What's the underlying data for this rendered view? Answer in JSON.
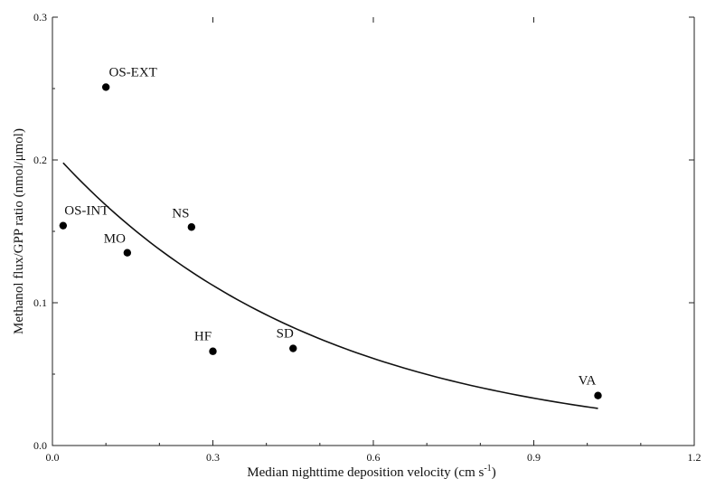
{
  "chart_data": {
    "type": "scatter",
    "xlabel": "Median nighttime deposition velocity (cm s",
    "xlabel_sup": "-1",
    "xlabel_suffix": ")",
    "ylabel": "Methanol flux/GPP ratio (nmol/μmol)",
    "xlim": [
      0.0,
      1.2
    ],
    "ylim": [
      0.0,
      0.3
    ],
    "x_ticks": [
      0.0,
      0.3,
      0.6,
      0.9,
      1.2
    ],
    "x_tick_labels": [
      "0.0",
      "0.3",
      "0.6",
      "0.9",
      "1.2"
    ],
    "y_ticks": [
      0.0,
      0.1,
      0.2,
      0.3
    ],
    "y_tick_labels": [
      "0.0",
      "0.1",
      "0.2",
      "0.3"
    ],
    "grid": false,
    "points": [
      {
        "label": "OS-EXT",
        "x": 0.1,
        "y": 0.251
      },
      {
        "label": "OS-INT",
        "x": 0.02,
        "y": 0.154
      },
      {
        "label": "NS",
        "x": 0.26,
        "y": 0.153
      },
      {
        "label": "MO",
        "x": 0.14,
        "y": 0.135
      },
      {
        "label": "HF",
        "x": 0.3,
        "y": 0.066
      },
      {
        "label": "SD",
        "x": 0.45,
        "y": 0.068
      },
      {
        "label": "VA",
        "x": 1.02,
        "y": 0.035
      }
    ],
    "fit_curve": {
      "type": "exponential",
      "x_range": [
        0.02,
        1.02
      ],
      "y_at_start": 0.198,
      "y_at_end": 0.026
    }
  }
}
